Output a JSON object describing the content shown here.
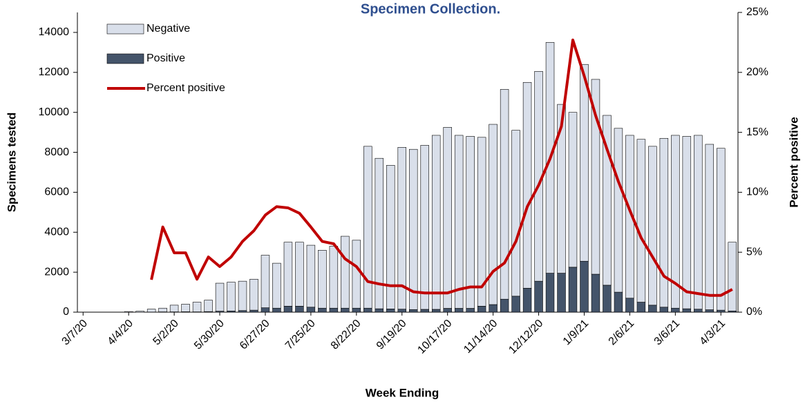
{
  "chart_data": {
    "type": "bar",
    "title": "Specimen Collection.",
    "x_label": "Week Ending",
    "y_label": "Specimens tested",
    "y2_label": "Percent positive",
    "categories": [
      "3/7/20",
      null,
      null,
      null,
      "4/4/20",
      null,
      null,
      null,
      "5/2/20",
      null,
      null,
      null,
      "5/30/20",
      null,
      null,
      null,
      "6/27/20",
      null,
      null,
      null,
      "7/25/20",
      null,
      null,
      null,
      "8/22/20",
      null,
      null,
      null,
      "9/19/20",
      null,
      null,
      null,
      "10/17/20",
      null,
      null,
      null,
      "11/14/20",
      null,
      null,
      null,
      "12/12/20",
      null,
      null,
      null,
      "1/9/21",
      null,
      null,
      null,
      "2/6/21",
      null,
      null,
      null,
      "3/6/21",
      null,
      null,
      null,
      "4/3/21",
      null
    ],
    "series": [
      {
        "name": "Negative",
        "type": "bar",
        "color": "#d9dfea",
        "values": [
          0,
          0,
          0,
          0,
          30,
          50,
          145,
          185,
          335,
          380,
          485,
          570,
          1400,
          1440,
          1470,
          1550,
          2630,
          2250,
          3200,
          3200,
          3100,
          2900,
          3100,
          3600,
          3400,
          8100,
          7530,
          7190,
          8100,
          8020,
          8210,
          8710,
          9060,
          8660,
          8610,
          8450,
          9020,
          10500,
          8300,
          10300,
          10500,
          11550,
          8450,
          7750,
          9850,
          9750,
          8500,
          8200,
          8150,
          8150,
          7950,
          8450,
          8650,
          8630,
          8700,
          8280,
          8100,
          3440
        ]
      },
      {
        "name": "Positive",
        "type": "bar",
        "color": "#44546a",
        "values": [
          0,
          0,
          0,
          0,
          0,
          0,
          5,
          15,
          15,
          20,
          15,
          30,
          50,
          60,
          80,
          100,
          220,
          200,
          300,
          300,
          250,
          200,
          200,
          200,
          200,
          200,
          170,
          160,
          150,
          130,
          140,
          140,
          190,
          190,
          190,
          300,
          380,
          650,
          800,
          1200,
          1550,
          1950,
          1950,
          2250,
          2550,
          1900,
          1350,
          1000,
          700,
          500,
          350,
          250,
          200,
          170,
          150,
          120,
          100,
          60
        ]
      },
      {
        "name": "Percent positive",
        "type": "line",
        "axis": "y2",
        "color": "#c00000",
        "values": [
          null,
          null,
          null,
          null,
          null,
          null,
          2.7,
          7.1,
          4.95,
          4.95,
          2.75,
          4.6,
          3.8,
          4.6,
          5.9,
          6.8,
          8.1,
          8.8,
          8.7,
          8.25,
          7.1,
          5.9,
          5.7,
          4.45,
          3.8,
          2.55,
          2.35,
          2.2,
          2.2,
          1.7,
          1.6,
          1.6,
          1.6,
          1.9,
          2.1,
          2.1,
          3.4,
          4.1,
          5.9,
          8.8,
          10.6,
          12.8,
          15.5,
          22.7,
          19.7,
          16.4,
          13.6,
          10.9,
          8.5,
          6.2,
          4.6,
          3.0,
          2.4,
          1.7,
          1.55,
          1.4,
          1.4,
          1.9
        ]
      }
    ],
    "stacked": true,
    "ylim": [
      0,
      15000
    ],
    "yticks": [
      0,
      2000,
      4000,
      6000,
      8000,
      10000,
      12000,
      14000
    ],
    "y2lim": [
      0,
      25
    ],
    "y2ticks": [
      {
        "value": 0,
        "label": "0%"
      },
      {
        "value": 5,
        "label": "5%"
      },
      {
        "value": 10,
        "label": "10%"
      },
      {
        "value": 15,
        "label": "15%"
      },
      {
        "value": 20,
        "label": "20%"
      },
      {
        "value": 25,
        "label": "25%"
      }
    ],
    "grid": false,
    "legend": "top-left",
    "title_color": "#2f4f8f"
  }
}
